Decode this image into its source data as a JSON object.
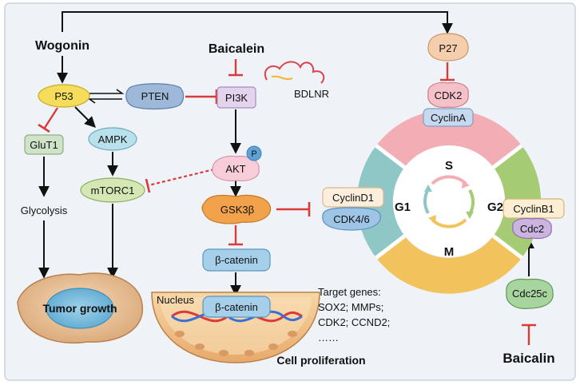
{
  "drugs": {
    "wogonin": "Wogonin",
    "baicalein": "Baicalein",
    "baicalin": "Baicalin"
  },
  "nodes": {
    "p53": "P53",
    "pten": "PTEN",
    "pi3k": "PI3K",
    "bdlnr": "BDLNR",
    "glut1": "GluT1",
    "ampk": "AMPK",
    "mtorc1": "mTORC1",
    "akt": "AKT",
    "p": "P",
    "gsk3b": "GSK3β",
    "bcatenin": "β-catenin",
    "bcatenin_nucleus": "β-catenin",
    "p27": "P27",
    "cdk2": "CDK2",
    "cyclina": "CyclinA",
    "cyclind1": "CyclinD1",
    "cdk46": "CDK4/6",
    "cyclinb1": "CyclinB1",
    "cdc2": "Cdc2",
    "cdc25c": "Cdc25c"
  },
  "labels": {
    "glycolysis": "Glycolysis",
    "tumor_growth": "Tumor growth",
    "nucleus": "Nucleus",
    "target_genes": [
      "Target genes:",
      "SOX2; MMPs;",
      "CDK2; CCND2;",
      "……"
    ],
    "cell_proliferation": "Cell proliferation"
  },
  "cycle": {
    "s": "S",
    "g1": "G1",
    "g2": "G2",
    "m": "M"
  },
  "colors": {
    "background": "#eff3f7",
    "activation_arrow": "#111111",
    "inhibition": "#d93a3a",
    "phase_s": "#f2aeb4",
    "phase_g1": "#8fc7c7",
    "phase_g2": "#a5cc74",
    "phase_m": "#f2c25c"
  }
}
